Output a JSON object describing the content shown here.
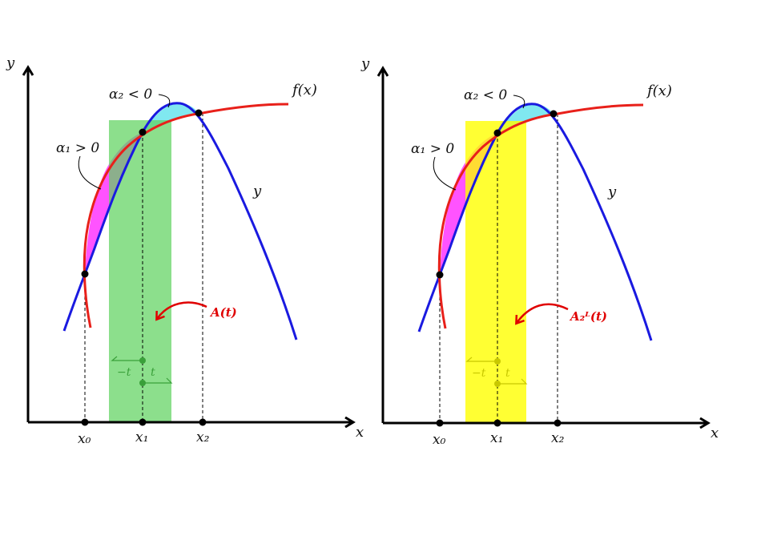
{
  "panels": [
    {
      "id": "left",
      "axis_x_label": "x",
      "axis_y_label": "y",
      "f_label": "f(x)",
      "y_label": "y",
      "alpha1_label": "α₁ > 0",
      "alpha2_label": "α₂ < 0",
      "x0_label": "x₀",
      "x1_label": "x₁",
      "x2_label": "x₂",
      "minus_t_label": "−t",
      "t_label": "t",
      "area_label": "A(t)",
      "band_color": "#5fd35f"
    },
    {
      "id": "right",
      "axis_x_label": "x",
      "axis_y_label": "y",
      "f_label": "f(x)",
      "y_label": "y",
      "alpha1_label": "α₁ > 0",
      "alpha2_label": "α₂ < 0",
      "x0_label": "x₀",
      "x1_label": "x₁",
      "x2_label": "x₂",
      "minus_t_label": "−t",
      "t_label": "t",
      "area_label": "A₂ᴸ(t)",
      "band_color": "#ffff00"
    }
  ],
  "colors": {
    "f_curve": "#e8201a",
    "y_curve": "#1a1ae0",
    "alpha1_fill": "#ff40ff",
    "alpha2_fill": "#80e8f0",
    "axis": "#000000"
  }
}
